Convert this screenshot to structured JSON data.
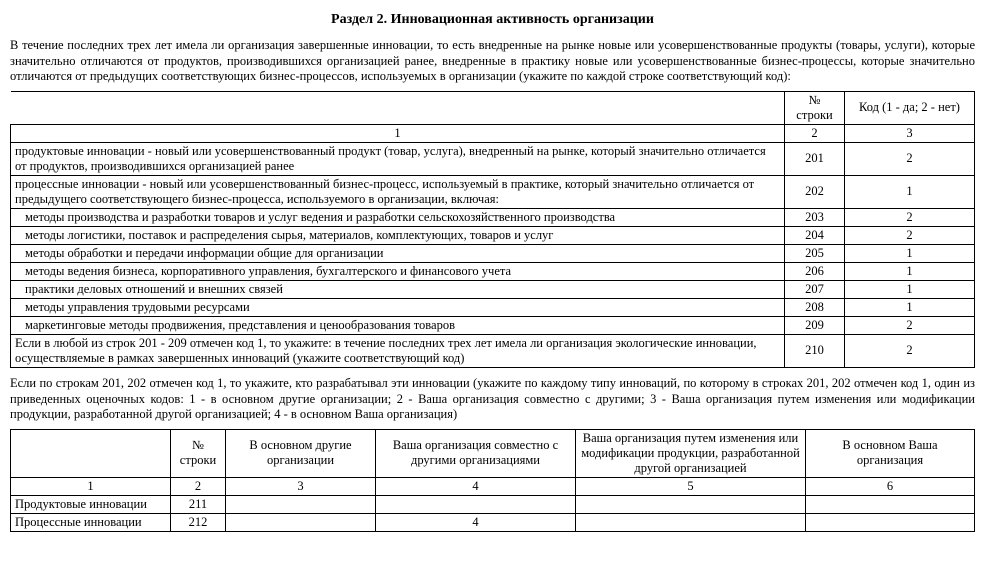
{
  "title": "Раздел 2. Инновационная активность организации",
  "intro1": "В течение последних трех лет имела ли организация завершенные инновации, то есть внедренные на рынке новые или усовершенствованные продукты (товары, услуги), которые значительно отличаются от продуктов, производившихся организацией ранее, внедренные в практику новые или усовершенствованные бизнес-процессы, которые значительно отличаются от предыдущих соответствующих бизнес-процессов, используемых в организации (укажите по каждой строке соответствующий код):",
  "t1": {
    "head_num": "№ строки",
    "head_code": "Код (1 - да; 2 - нет)",
    "colnums": {
      "c1": "1",
      "c2": "2",
      "c3": "3"
    },
    "rows": [
      {
        "desc": "продуктовые инновации - новый или усовершенствованный продукт (товар, услуга), внедренный на рынке, который значительно отличается от продуктов, производившихся организацией ранее",
        "num": "201",
        "code": "2",
        "indent": 0
      },
      {
        "desc": "процессные инновации - новый или усовершенствованный бизнес-процесс, используемый в практике, который значительно отличается от предыдущего соответствующего бизнес-процесса, используемого в организации, включая:",
        "num": "202",
        "code": "1",
        "indent": 0
      },
      {
        "desc": "методы производства и разработки товаров и услуг ведения и разработки сельскохозяйственного производства",
        "num": "203",
        "code": "2",
        "indent": 1
      },
      {
        "desc": "методы логистики, поставок и распределения сырья, материалов, комплектующих, товаров и услуг",
        "num": "204",
        "code": "2",
        "indent": 1
      },
      {
        "desc": "методы обработки и передачи информации общие для организации",
        "num": "205",
        "code": "1",
        "indent": 1
      },
      {
        "desc": "методы ведения бизнеса, корпоративного управления, бухгалтерского и финансового учета",
        "num": "206",
        "code": "1",
        "indent": 1
      },
      {
        "desc": "практики деловых отношений и внешних связей",
        "num": "207",
        "code": "1",
        "indent": 1
      },
      {
        "desc": "методы управления трудовыми ресурсами",
        "num": "208",
        "code": "1",
        "indent": 1
      },
      {
        "desc": "маркетинговые методы продвижения, представления и ценообразования товаров",
        "num": "209",
        "code": "2",
        "indent": 1
      },
      {
        "desc": "Если в любой из строк 201 - 209 отмечен код 1, то укажите: в течение последних трех лет имела ли организация экологические инновации, осуществляемые в рамках завершенных инноваций (укажите соответствующий код)",
        "num": "210",
        "code": "2",
        "indent": 0
      }
    ]
  },
  "intro2": "Если по строкам 201, 202 отмечен код 1, то укажите, кто разрабатывал эти инновации (укажите по каждому типу инноваций, по которому в строках 201, 202 отмечен код 1, один из приведенных оценочных кодов: 1 - в основном другие организации; 2 - Ваша организация совместно с другими; 3 - Ваша организация путем изменения или модификации продукции, разработанной другой организацией; 4 - в основном Ваша организация)",
  "t2": {
    "head": {
      "c2": "№ строки",
      "c3": "В основном другие организации",
      "c4": "Ваша организация совместно с другими организациями",
      "c5": "Ваша организация путем изменения или модификации продукции, разработанной другой организацией",
      "c6": "В основном Ваша организация"
    },
    "colnums": {
      "c1": "1",
      "c2": "2",
      "c3": "3",
      "c4": "4",
      "c5": "5",
      "c6": "6"
    },
    "rows": [
      {
        "desc": "Продуктовые инновации",
        "num": "211",
        "v3": "",
        "v4": "",
        "v5": "",
        "v6": ""
      },
      {
        "desc": "Процессные инновации",
        "num": "212",
        "v3": "",
        "v4": "4",
        "v5": "",
        "v6": ""
      }
    ]
  }
}
